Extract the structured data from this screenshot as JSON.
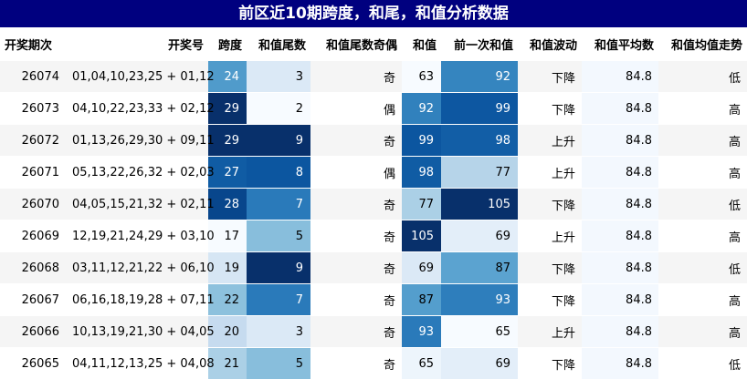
{
  "title": "前区近10期跨度，和尾，和值分析数据",
  "columns": [
    "开奖期次",
    "开奖号",
    "跨度",
    "和值尾数",
    "和值尾数奇偶",
    "和值",
    "前一次和值",
    "和值波动",
    "和值平均数",
    "和值均值走势"
  ],
  "rows": [
    {
      "issue": "26074",
      "numbers": "01,04,10,23,25 + 01,12",
      "span": 24,
      "tail": 3,
      "parity": "奇",
      "sum": 63,
      "prev": 92,
      "wave": "下降",
      "avg": "84.8",
      "trend": "低"
    },
    {
      "issue": "26073",
      "numbers": "04,10,22,23,33 + 02,12",
      "span": 29,
      "tail": 2,
      "parity": "偶",
      "sum": 92,
      "prev": 99,
      "wave": "下降",
      "avg": "84.8",
      "trend": "高"
    },
    {
      "issue": "26072",
      "numbers": "01,13,26,29,30 + 09,11",
      "span": 29,
      "tail": 9,
      "parity": "奇",
      "sum": 99,
      "prev": 98,
      "wave": "上升",
      "avg": "84.8",
      "trend": "高"
    },
    {
      "issue": "26071",
      "numbers": "05,13,22,26,32 + 02,03",
      "span": 27,
      "tail": 8,
      "parity": "偶",
      "sum": 98,
      "prev": 77,
      "wave": "上升",
      "avg": "84.8",
      "trend": "高"
    },
    {
      "issue": "26070",
      "numbers": "04,05,15,21,32 + 02,11",
      "span": 28,
      "tail": 7,
      "parity": "奇",
      "sum": 77,
      "prev": 105,
      "wave": "下降",
      "avg": "84.8",
      "trend": "低"
    },
    {
      "issue": "26069",
      "numbers": "12,19,21,24,29 + 03,10",
      "span": 17,
      "tail": 5,
      "parity": "奇",
      "sum": 105,
      "prev": 69,
      "wave": "上升",
      "avg": "84.8",
      "trend": "高"
    },
    {
      "issue": "26068",
      "numbers": "03,11,12,21,22 + 06,10",
      "span": 19,
      "tail": 9,
      "parity": "奇",
      "sum": 69,
      "prev": 87,
      "wave": "下降",
      "avg": "84.8",
      "trend": "低"
    },
    {
      "issue": "26067",
      "numbers": "06,16,18,19,28 + 07,11",
      "span": 22,
      "tail": 7,
      "parity": "奇",
      "sum": 87,
      "prev": 93,
      "wave": "下降",
      "avg": "84.8",
      "trend": "高"
    },
    {
      "issue": "26066",
      "numbers": "10,13,19,21,30 + 04,05",
      "span": 20,
      "tail": 3,
      "parity": "奇",
      "sum": 93,
      "prev": 65,
      "wave": "上升",
      "avg": "84.8",
      "trend": "高"
    },
    {
      "issue": "26065",
      "numbers": "04,11,12,13,25 + 04,08",
      "span": 21,
      "tail": 5,
      "parity": "奇",
      "sum": 65,
      "prev": 69,
      "wave": "下降",
      "avg": "84.8",
      "trend": "低"
    }
  ],
  "colors": {
    "header_bg": "#00007f",
    "scale": [
      "#f7fbff",
      "#deebf7",
      "#c6dbef",
      "#9ecae1",
      "#6baed6",
      "#4292c6",
      "#2171b5",
      "#08519c",
      "#08306b"
    ]
  }
}
